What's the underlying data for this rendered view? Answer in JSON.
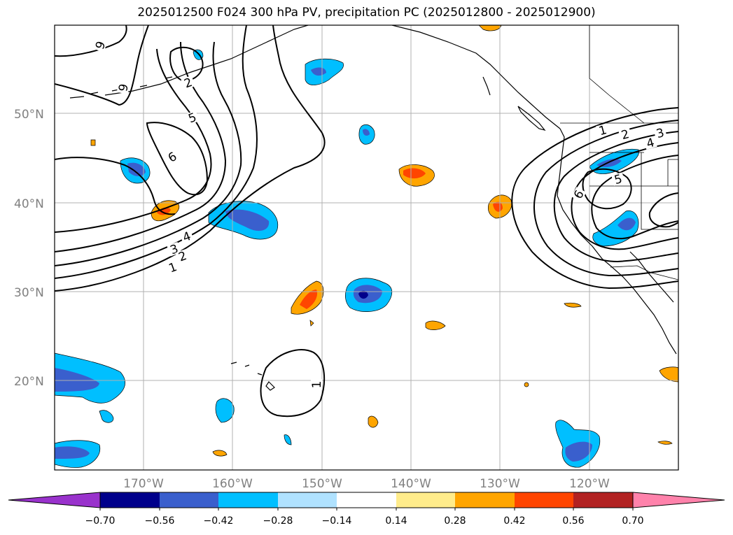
{
  "title": "2025012500 F024 300 hPa PV, precipitation PC (2025012800 - 2025012900)",
  "lat_labels": [
    "50°N",
    "40°N",
    "30°N",
    "20°N"
  ],
  "lon_labels": [
    "170°W",
    "160°W",
    "150°W",
    "140°W",
    "130°W",
    "120°W"
  ],
  "contour_labels": [
    "9",
    "2",
    "5",
    "6",
    "4",
    "3",
    "2",
    "1",
    "1",
    "2",
    "3",
    "4",
    "5",
    "6",
    "1"
  ],
  "colorbar": {
    "ticks": [
      "−0.70",
      "−0.56",
      "−0.42",
      "−0.28",
      "−0.14",
      "0.14",
      "0.28",
      "0.42",
      "0.56",
      "0.70"
    ],
    "colors": [
      "#9932cc",
      "#00008b",
      "#3a5fcd",
      "#00bfff",
      "#b0e2ff",
      "#ffffff",
      "#ffec8b",
      "#ffa500",
      "#ff4500",
      "#b22222",
      "#ff82ab"
    ]
  },
  "colors": {
    "pos_light": "#ffa500",
    "pos_mid": "#ff4500",
    "pos_edge": "#ffec8b",
    "neg_light": "#00bfff",
    "neg_mid": "#3a5fcd",
    "neg_dark": "#00008b",
    "grid": "#b0b0b0"
  }
}
